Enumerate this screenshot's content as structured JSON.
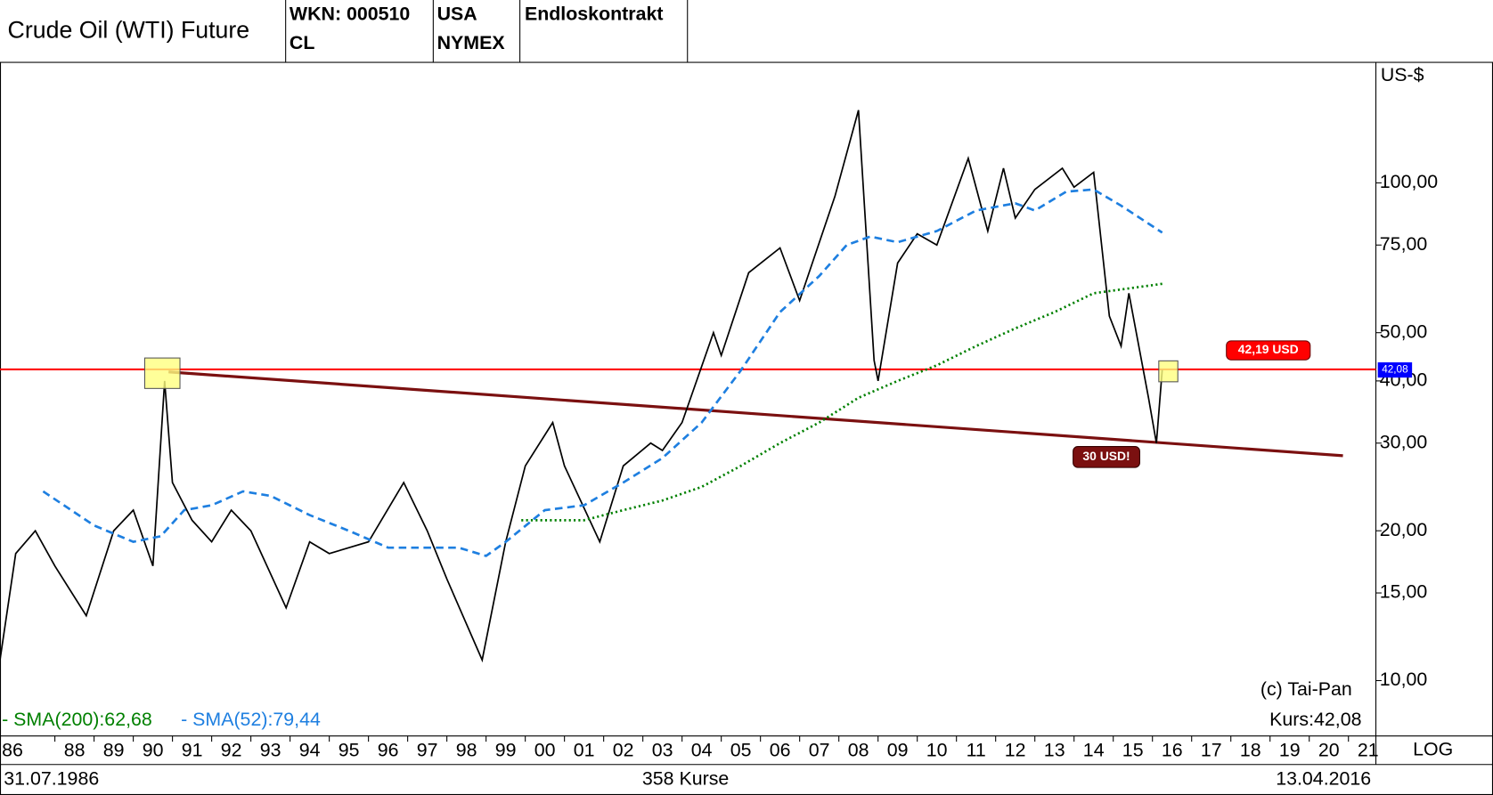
{
  "header": {
    "title": "Crude Oil (WTI) Future",
    "wkn": "WKN: 000510",
    "symbol": "CL",
    "country": "USA",
    "exchange": "NYMEX",
    "contract": "Endloskontrakt"
  },
  "chart_data": {
    "type": "line",
    "log_scale": true,
    "y_unit": "US-$",
    "scale_label": "LOG",
    "xlim": [
      1986.6,
      2021.7
    ],
    "ylim": [
      7.74,
      175
    ],
    "xticks": [
      {
        "value": 1986,
        "label": "86"
      },
      {
        "value": 1988,
        "label": "88"
      },
      {
        "value": 1989,
        "label": "89"
      },
      {
        "value": 1990,
        "label": "90"
      },
      {
        "value": 1991,
        "label": "91"
      },
      {
        "value": 1992,
        "label": "92"
      },
      {
        "value": 1993,
        "label": "93"
      },
      {
        "value": 1994,
        "label": "94"
      },
      {
        "value": 1995,
        "label": "95"
      },
      {
        "value": 1996,
        "label": "96"
      },
      {
        "value": 1997,
        "label": "97"
      },
      {
        "value": 1998,
        "label": "98"
      },
      {
        "value": 1999,
        "label": "99"
      },
      {
        "value": 2000,
        "label": "00"
      },
      {
        "value": 2001,
        "label": "01"
      },
      {
        "value": 2002,
        "label": "02"
      },
      {
        "value": 2003,
        "label": "03"
      },
      {
        "value": 2004,
        "label": "04"
      },
      {
        "value": 2005,
        "label": "05"
      },
      {
        "value": 2006,
        "label": "06"
      },
      {
        "value": 2007,
        "label": "07"
      },
      {
        "value": 2008,
        "label": "08"
      },
      {
        "value": 2009,
        "label": "09"
      },
      {
        "value": 2010,
        "label": "10"
      },
      {
        "value": 2011,
        "label": "11"
      },
      {
        "value": 2012,
        "label": "12"
      },
      {
        "value": 2013,
        "label": "13"
      },
      {
        "value": 2014,
        "label": "14"
      },
      {
        "value": 2015,
        "label": "15"
      },
      {
        "value": 2016,
        "label": "16"
      },
      {
        "value": 2017,
        "label": "17"
      },
      {
        "value": 2018,
        "label": "18"
      },
      {
        "value": 2019,
        "label": "19"
      },
      {
        "value": 2020,
        "label": "20"
      },
      {
        "value": 2021,
        "label": "21"
      }
    ],
    "yticks": [
      {
        "value": 10,
        "label": "10,00"
      },
      {
        "value": 15,
        "label": "15,00"
      },
      {
        "value": 20,
        "label": "20,00"
      },
      {
        "value": 30,
        "label": "30,00"
      },
      {
        "value": 40,
        "label": "40,00"
      },
      {
        "value": 50,
        "label": "50,00"
      },
      {
        "value": 75,
        "label": "75,00"
      },
      {
        "value": 100,
        "label": "100,00"
      }
    ],
    "series": [
      {
        "name": "Kurs",
        "color": "#000000",
        "style": "solid",
        "x": [
          1986.6,
          1987.0,
          1987.5,
          1988.0,
          1988.8,
          1989.5,
          1990.0,
          1990.5,
          1990.8,
          1991.0,
          1991.5,
          1992.0,
          1992.5,
          1993.0,
          1993.9,
          1994.5,
          1995.0,
          1996.0,
          1996.9,
          1997.5,
          1998.0,
          1998.9,
          1999.5,
          2000.0,
          2000.7,
          2001.0,
          2001.9,
          2002.5,
          2003.2,
          2003.5,
          2004.0,
          2004.8,
          2005.0,
          2005.7,
          2006.5,
          2007.0,
          2007.9,
          2008.5,
          2008.9,
          2009.0,
          2009.5,
          2010.0,
          2010.5,
          2011.3,
          2011.8,
          2012.2,
          2012.5,
          2013.0,
          2013.7,
          2014.0,
          2014.5,
          2014.9,
          2015.2,
          2015.4,
          2015.9,
          2016.1,
          2016.25
        ],
        "values": [
          11,
          18,
          20,
          17,
          13.5,
          20,
          22,
          17,
          40,
          25,
          21,
          19,
          22,
          20,
          14,
          19,
          18,
          19,
          25,
          20,
          16,
          11,
          19,
          27,
          33,
          27,
          19,
          27,
          30,
          29,
          33,
          50,
          45,
          66,
          74,
          58,
          94,
          140,
          44,
          40,
          69,
          79,
          75,
          112,
          80,
          107,
          85,
          97,
          107,
          98,
          105,
          54,
          47,
          60,
          37,
          30,
          42.08
        ]
      },
      {
        "name": "- SMA(200):62,68",
        "color": "#008000",
        "style": "dotted",
        "x": [
          1999.9,
          2001.5,
          2002.5,
          2003.5,
          2004.5,
          2005.5,
          2006.5,
          2007.5,
          2008.5,
          2009.5,
          2010.5,
          2011.5,
          2012.5,
          2013.5,
          2014.5,
          2016.25
        ],
        "values": [
          21,
          21,
          22,
          23,
          24.5,
          27,
          30,
          33,
          37,
          40,
          43,
          47,
          51,
          55,
          60,
          62.68
        ]
      },
      {
        "name": "- SMA(52):79,44",
        "color": "#1e7fe0",
        "style": "dashed",
        "x": [
          1987.7,
          1989.0,
          1990.0,
          1990.7,
          1991.3,
          1992.0,
          1992.8,
          1993.5,
          1994.5,
          1995.5,
          1996.5,
          1997.5,
          1998.3,
          1999.0,
          1999.5,
          2000.5,
          2001.5,
          2002.5,
          2003.5,
          2004.5,
          2005.5,
          2006.5,
          2007.5,
          2008.2,
          2008.8,
          2009.5,
          2010.5,
          2011.5,
          2012.5,
          2013.0,
          2013.8,
          2014.5,
          2015.2,
          2016.25
        ],
        "values": [
          24,
          20.5,
          19,
          19.5,
          22,
          22.5,
          24,
          23.5,
          21.5,
          20,
          18.5,
          18.5,
          18.5,
          17.8,
          19,
          22,
          22.5,
          25,
          28,
          33,
          42,
          55,
          65,
          75,
          78,
          76,
          80,
          88,
          91,
          88,
          96,
          97,
          90,
          79.44
        ]
      }
    ],
    "level": {
      "value": 42.19,
      "label": "42,19 USD",
      "color": "#ff0000"
    },
    "trendline": {
      "x": [
        1990.9,
        2020.86
      ],
      "values": [
        41.7,
        28.3
      ],
      "label": "30 USD!",
      "color": "#7b1010"
    },
    "last_price": {
      "value": 42.08,
      "label": "42,08"
    },
    "copyright": "(c) Tai-Pan",
    "kurs_label": "Kurs:42,08",
    "start_date": "31.07.1986",
    "count_label": "358 Kurse",
    "end_date": "13.04.2016"
  }
}
